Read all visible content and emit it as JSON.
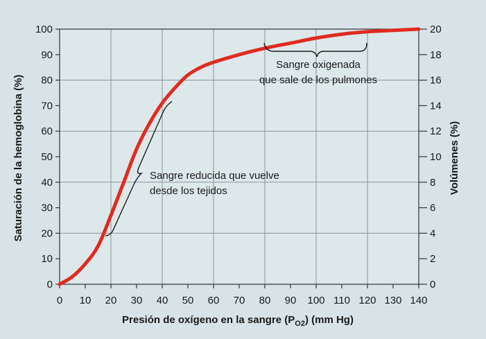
{
  "chart_data": {
    "type": "line",
    "title": "",
    "xlabel": "Presión de oxígeno en la sangre (P",
    "xlabel_sub": "O2",
    "xlabel_tail": ") (mm Hg)",
    "ylabel_left": "Saturación de la hemoglobina (%)",
    "ylabel_right": "Volúmenes (%)",
    "xlim": [
      0,
      140
    ],
    "ylim_left": [
      0,
      100
    ],
    "ylim_right": [
      0,
      20
    ],
    "x_ticks": [
      "0",
      "10",
      "20",
      "30",
      "40",
      "50",
      "60",
      "70",
      "80",
      "90",
      "100",
      "110",
      "120",
      "130",
      "140"
    ],
    "y_left_ticks": [
      "0",
      "10",
      "20",
      "30",
      "40",
      "50",
      "60",
      "70",
      "80",
      "90",
      "100"
    ],
    "y_right_ticks": [
      "0",
      "2",
      "4",
      "6",
      "8",
      "10",
      "12",
      "14",
      "16",
      "18",
      "20"
    ],
    "grid": true,
    "series": [
      {
        "color": "#e02b20",
        "x": [
          0,
          5,
          10,
          15,
          20,
          25,
          30,
          35,
          40,
          45,
          50,
          55,
          60,
          70,
          80,
          90,
          100,
          110,
          120,
          130,
          140
        ],
        "y": [
          0,
          3,
          8,
          15,
          27,
          40,
          53,
          63,
          71,
          77,
          82,
          85,
          87,
          90,
          92.5,
          94.5,
          96.5,
          98,
          99,
          99.5,
          100
        ]
      }
    ],
    "annotations": [
      {
        "lines": [
          "Sangre oxigenada",
          "que sale de los pulmones"
        ]
      },
      {
        "lines": [
          "Sangre reducida que vuelve",
          "desde los tejidos"
        ]
      }
    ]
  }
}
